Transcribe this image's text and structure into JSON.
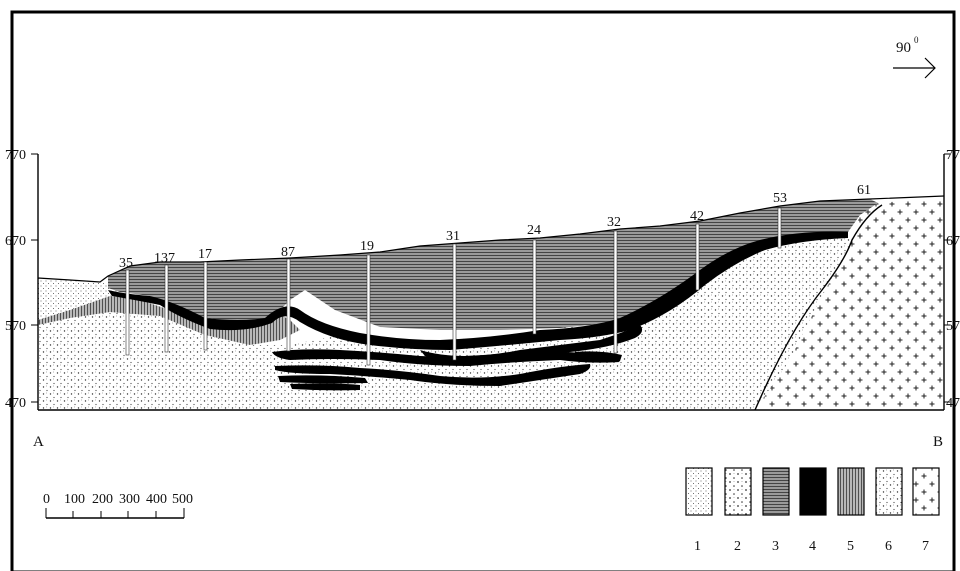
{
  "direction": {
    "label": "90",
    "superscript": "0"
  },
  "elevation_axis_left": {
    "ticks": [
      "770",
      "670",
      "570",
      "470"
    ]
  },
  "elevation_axis_right": {
    "ticks": [
      "77",
      "67",
      "57",
      "47"
    ]
  },
  "section_ends": {
    "start": "A",
    "end": "B"
  },
  "boreholes": [
    "35",
    "137",
    "17",
    "87",
    "19",
    "31",
    "24",
    "32",
    "42",
    "53",
    "61"
  ],
  "scale_bar": {
    "labels": [
      "0",
      "100",
      "200",
      "300",
      "400",
      "500"
    ]
  },
  "legend": {
    "items": [
      {
        "number": "1",
        "pattern": "fine-dots"
      },
      {
        "number": "2",
        "pattern": "coarse-dots"
      },
      {
        "number": "3",
        "pattern": "horizontal-hatch"
      },
      {
        "number": "4",
        "pattern": "solid-black"
      },
      {
        "number": "5",
        "pattern": "vertical-hatch"
      },
      {
        "number": "6",
        "pattern": "dense-dots"
      },
      {
        "number": "7",
        "pattern": "crosses"
      }
    ]
  }
}
